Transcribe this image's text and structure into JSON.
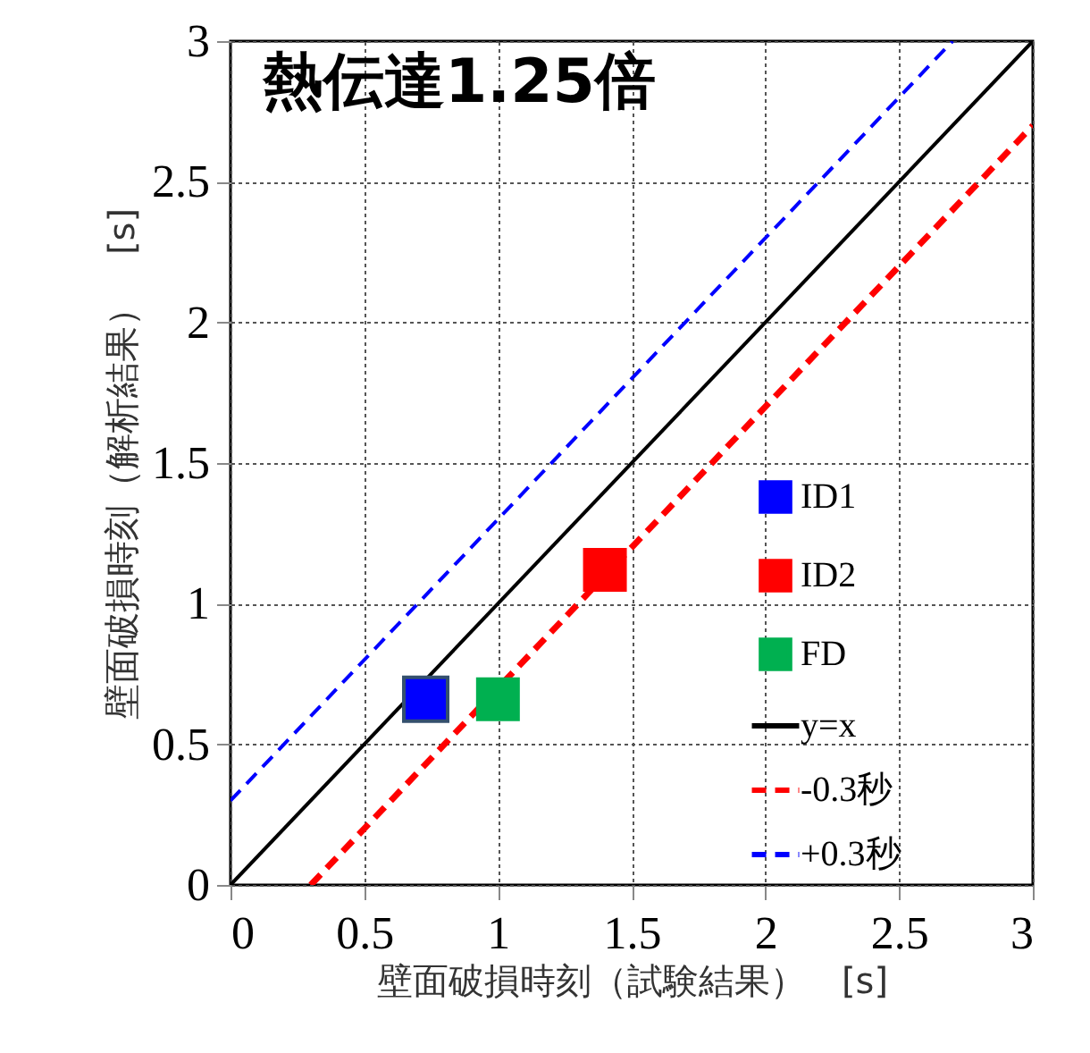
{
  "chart_data": {
    "type": "scatter",
    "title": "熱伝達1.25倍",
    "xlabel": "壁面破損時刻（試験結果）　[s]",
    "ylabel": "壁面破損時刻（解析結果）　[s]",
    "xlim": [
      0,
      3
    ],
    "ylim": [
      0,
      3
    ],
    "xticks": [
      0,
      0.5,
      1,
      1.5,
      2,
      2.5,
      3
    ],
    "yticks": [
      0,
      0.5,
      1,
      1.5,
      2,
      2.5,
      3
    ],
    "grid": true,
    "legend": "right",
    "series": [
      {
        "name": "ID1",
        "marker": "square",
        "color": "#0000ff",
        "x": [
          0.73
        ],
        "values": [
          0.66
        ]
      },
      {
        "name": "ID2",
        "marker": "square",
        "color": "#ff0000",
        "x": [
          1.4
        ],
        "values": [
          1.12
        ]
      },
      {
        "name": "FD",
        "marker": "square",
        "color": "#00b050",
        "x": [
          1.0
        ],
        "values": [
          0.66
        ]
      },
      {
        "name": "y=x",
        "type": "line",
        "color": "#000000",
        "line_style": "solid",
        "x": [
          0,
          3
        ],
        "values": [
          0,
          3
        ]
      },
      {
        "name": "-0.3秒",
        "type": "line",
        "color": "#ff0000",
        "line_style": "dashed",
        "x": [
          0.3,
          3
        ],
        "values": [
          0,
          2.7
        ]
      },
      {
        "name": "+0.3秒",
        "type": "line",
        "color": "#0000ff",
        "line_style": "dashed",
        "x": [
          0,
          2.7
        ],
        "values": [
          0.3,
          3
        ]
      }
    ]
  }
}
